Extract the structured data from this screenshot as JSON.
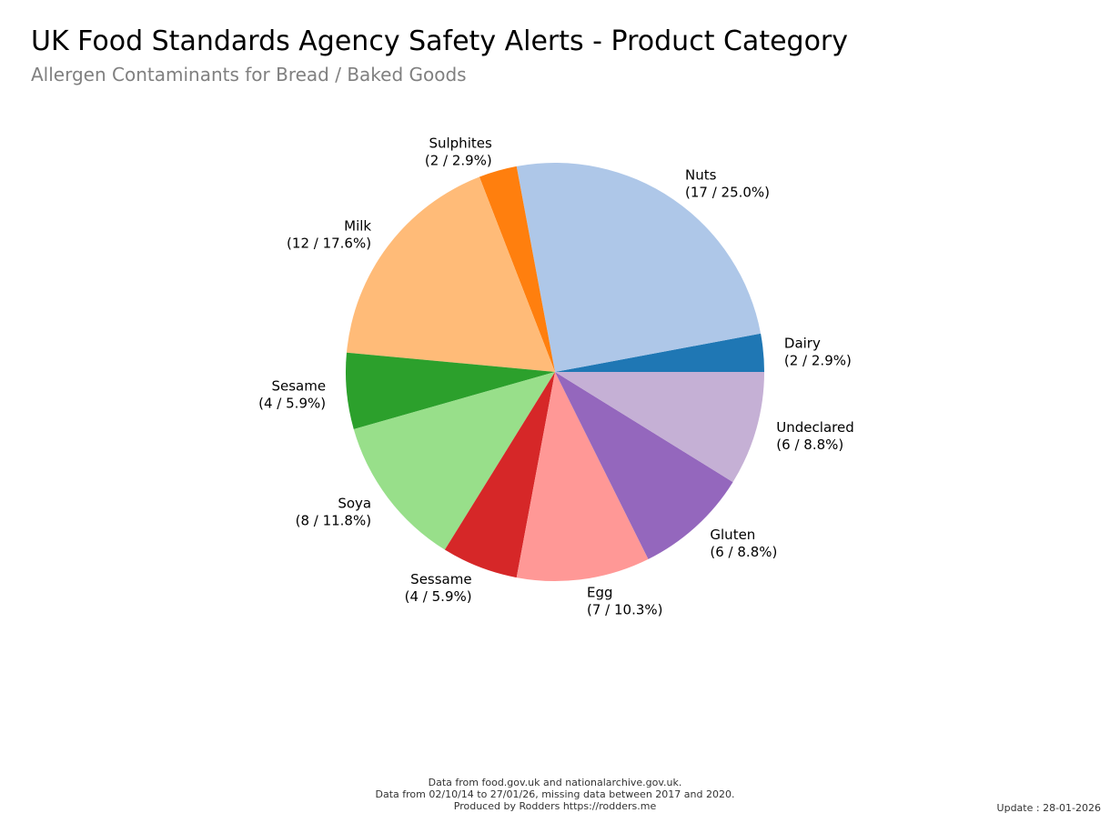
{
  "chart_data": {
    "type": "pie",
    "title": "UK Food Standards Agency Safety Alerts - Product Category",
    "subtitle": "Allergen Contaminants for Bread / Baked Goods",
    "slices": [
      {
        "label": "Dairy",
        "value": 2,
        "display": "(2 / 2.9%)",
        "color": "#1f77b4"
      },
      {
        "label": "Nuts",
        "value": 17,
        "display": "(17 / 25.0%)",
        "color": "#aec7e8"
      },
      {
        "label": "Sulphites",
        "value": 2,
        "display": "(2 / 2.9%)",
        "color": "#ff7f0e"
      },
      {
        "label": "Milk",
        "value": 12,
        "display": "(12 / 17.6%)",
        "color": "#ffbb78"
      },
      {
        "label": "Sesame",
        "value": 4,
        "display": "(4 / 5.9%)",
        "color": "#2ca02c"
      },
      {
        "label": "Soya",
        "value": 8,
        "display": "(8 / 11.8%)",
        "color": "#98df8a"
      },
      {
        "label": "Sessame",
        "value": 4,
        "display": "(4 / 5.9%)",
        "color": "#d62728"
      },
      {
        "label": "Egg",
        "value": 7,
        "display": "(7 / 10.3%)",
        "color": "#ff9896"
      },
      {
        "label": "Gluten",
        "value": 6,
        "display": "(6 / 8.8%)",
        "color": "#9467bd"
      },
      {
        "label": "Undeclared",
        "value": 6,
        "display": "(6 / 8.8%)",
        "color": "#c5b0d5"
      }
    ]
  },
  "footer": {
    "line1": "Data from food.gov.uk and nationalarchive.gov.uk.",
    "line2": "Data from 02/10/14 to 27/01/26, missing data between 2017 and 2020.",
    "line3": "Produced by Rodders https://rodders.me"
  },
  "update": "Update : 28-01-2026"
}
